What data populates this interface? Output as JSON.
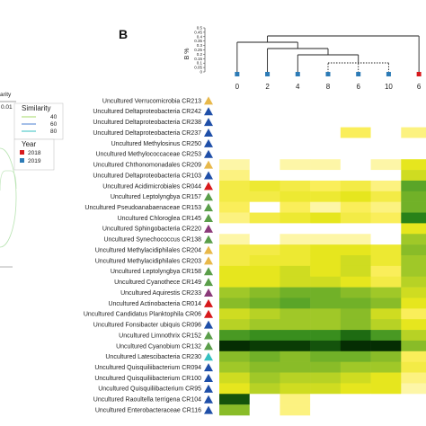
{
  "panel_label": "B",
  "left_fragment": {
    "axis_text": "arity",
    "axis_value": "0.01",
    "similarity_title": "Similarity",
    "similarity_levels": [
      "40",
      "60",
      "80"
    ],
    "similarity_colors": [
      "#a6d96a",
      "#4a7fd1",
      "#35c0c0"
    ],
    "year_title": "Year",
    "years": [
      {
        "label": "2018",
        "color": "#d7191c"
      },
      {
        "label": "2019",
        "color": "#2c7bb6"
      }
    ]
  },
  "dendrogram": {
    "axis_label": "B %",
    "scale_ticks": [
      "0.5",
      "0.45",
      "0.4",
      "0.35",
      "0.3",
      "0.25",
      "0.2",
      "0.15",
      "0.1",
      "0.05",
      "0"
    ],
    "leaves": [
      "0",
      "2",
      "4",
      "8",
      "6",
      "10",
      "6"
    ],
    "leaf_colors": [
      "#2c7bb6",
      "#2c7bb6",
      "#2c7bb6",
      "#2c7bb6",
      "#2c7bb6",
      "#2c7bb6",
      "#d7191c"
    ]
  },
  "chart_data": {
    "type": "heatmap",
    "title": "",
    "columns": [
      "0",
      "2",
      "4",
      "8",
      "6",
      "10",
      "6"
    ],
    "rows": [
      {
        "label": "Uncultured Verrucomicrobia CR213",
        "marker": "#e8b84a",
        "values": [
          0,
          0,
          0,
          0,
          0,
          0,
          0
        ]
      },
      {
        "label": "Uncultured Deltaproteobacteria CR242",
        "marker": "#1f4fa8",
        "values": [
          0,
          0,
          0,
          0,
          0,
          0,
          0
        ]
      },
      {
        "label": "Uncultured Deltaproteobacteria CR238",
        "marker": "#1f4fa8",
        "values": [
          0,
          0,
          0,
          0,
          0,
          0,
          0
        ]
      },
      {
        "label": "Uncultured Deltaproteobacteria CR237",
        "marker": "#1f4fa8",
        "values": [
          0,
          0,
          0,
          0,
          0.15,
          0,
          0.1
        ]
      },
      {
        "label": "Uncultured Methylosinus CR250",
        "marker": "#1f4fa8",
        "values": [
          0,
          0,
          0,
          0,
          0,
          0,
          0
        ]
      },
      {
        "label": "Uncultured Methylococcaceae CR253",
        "marker": "#1f4fa8",
        "values": [
          0,
          0,
          0,
          0,
          0,
          0,
          0
        ]
      },
      {
        "label": "Uncultured Chthonomonadales CR209",
        "marker": "#e8b84a",
        "values": [
          0.05,
          0,
          0.05,
          0.05,
          0,
          0.05,
          0.3
        ]
      },
      {
        "label": "Uncultured Deltaproteobacteria CR103",
        "marker": "#1f4fa8",
        "values": [
          0.1,
          0,
          0,
          0,
          0,
          0,
          0.35
        ]
      },
      {
        "label": "Uncultured Acidimicrobiales CR044",
        "marker": "#d7191c",
        "values": [
          0.2,
          0.25,
          0.2,
          0.15,
          0.2,
          0.1,
          0.6
        ]
      },
      {
        "label": "Uncultured Leptolyngbya CR157",
        "marker": "#5a9e4a",
        "values": [
          0.2,
          0.2,
          0.25,
          0.25,
          0.3,
          0.2,
          0.55
        ]
      },
      {
        "label": "Uncultured Pseudoanabaenaceae CR153",
        "marker": "#5a9e4a",
        "values": [
          0.15,
          0,
          0.15,
          0.05,
          0.15,
          0.1,
          0.55
        ]
      },
      {
        "label": "Uncultured Chloroglea CR145",
        "marker": "#5a9e4a",
        "values": [
          0.1,
          0.2,
          0.25,
          0.3,
          0.2,
          0.15,
          0.75
        ]
      },
      {
        "label": "Uncultured Sphingobacteria CR220",
        "marker": "#8b3a7a",
        "values": [
          0,
          0,
          0,
          0,
          0,
          0,
          0.3
        ]
      },
      {
        "label": "Uncultured Synechococcus CR138",
        "marker": "#5a9e4a",
        "values": [
          0.05,
          0,
          0.05,
          0.05,
          0.05,
          0,
          0.45
        ]
      },
      {
        "label": "Uncultured Methylacidiphilales CR204",
        "marker": "#e8b84a",
        "values": [
          0.2,
          0.2,
          0.25,
          0.3,
          0.3,
          0.25,
          0.5
        ]
      },
      {
        "label": "Uncultured Methylacidiphilales CR203",
        "marker": "#e8b84a",
        "values": [
          0.2,
          0.25,
          0.25,
          0.3,
          0.35,
          0.25,
          0.45
        ]
      },
      {
        "label": "Uncultured Leptolyngbya CR158",
        "marker": "#5a9e4a",
        "values": [
          0.3,
          0.3,
          0.35,
          0.3,
          0.35,
          0.15,
          0.45
        ]
      },
      {
        "label": "Uncultured Cyanothece CR149",
        "marker": "#5a9e4a",
        "values": [
          0.3,
          0.3,
          0.35,
          0.35,
          0.3,
          0.2,
          0.4
        ]
      },
      {
        "label": "Uncultured Aquirestis CR233",
        "marker": "#8b3a7a",
        "values": [
          0.45,
          0.5,
          0.55,
          0.55,
          0.5,
          0.45,
          0.35
        ]
      },
      {
        "label": "Uncultured Actinobacteria CR014",
        "marker": "#d7191c",
        "values": [
          0.5,
          0.55,
          0.6,
          0.55,
          0.55,
          0.5,
          0.3
        ]
      },
      {
        "label": "Uncultured Candidatus Planktophila CR06",
        "marker": "#d7191c",
        "values": [
          0.35,
          0.4,
          0.45,
          0.45,
          0.5,
          0.35,
          0.15
        ]
      },
      {
        "label": "Uncultured Fonsibacter ubiquis CR096",
        "marker": "#1f4fa8",
        "values": [
          0.4,
          0.45,
          0.45,
          0.45,
          0.5,
          0.4,
          0.3
        ]
      },
      {
        "label": "Uncultured Limnothrix CR152",
        "marker": "#5a9e4a",
        "values": [
          0.65,
          0.7,
          0.7,
          0.7,
          0.8,
          0.65,
          0.4
        ]
      },
      {
        "label": "Uncultured Cyanobium CR132",
        "marker": "#5a9e4a",
        "values": [
          0.95,
          0.9,
          0.9,
          0.85,
          0.95,
          0.95,
          0.5
        ]
      },
      {
        "label": "Uncultured Latescibacteria CR230",
        "marker": "#35c0c0",
        "values": [
          0.5,
          0.55,
          0.5,
          0.55,
          0.55,
          0.5,
          0.15
        ]
      },
      {
        "label": "Uncultured Quisquiliibacterium CR094",
        "marker": "#1f4fa8",
        "values": [
          0.45,
          0.5,
          0.5,
          0.5,
          0.45,
          0.45,
          0.2
        ]
      },
      {
        "label": "Uncultured Quisquiliibacterium CR100",
        "marker": "#1f4fa8",
        "values": [
          0.35,
          0.45,
          0.4,
          0.4,
          0.35,
          0.3,
          0.1
        ]
      },
      {
        "label": "Uncultured Quisquiliibacterium CR95",
        "marker": "#1f4fa8",
        "values": [
          0.3,
          0.4,
          0.35,
          0.35,
          0.3,
          0.3,
          0.05
        ]
      },
      {
        "label": "Uncultured Raoultella terrigena CR104",
        "marker": "#1f4fa8",
        "values": [
          0.85,
          0,
          0.1,
          0,
          0,
          0,
          0
        ]
      },
      {
        "label": "Uncultured Enterobacteraceae CR116",
        "marker": "#1f4fa8",
        "values": [
          0.5,
          0,
          0.1,
          0,
          0,
          0,
          0
        ]
      }
    ]
  }
}
